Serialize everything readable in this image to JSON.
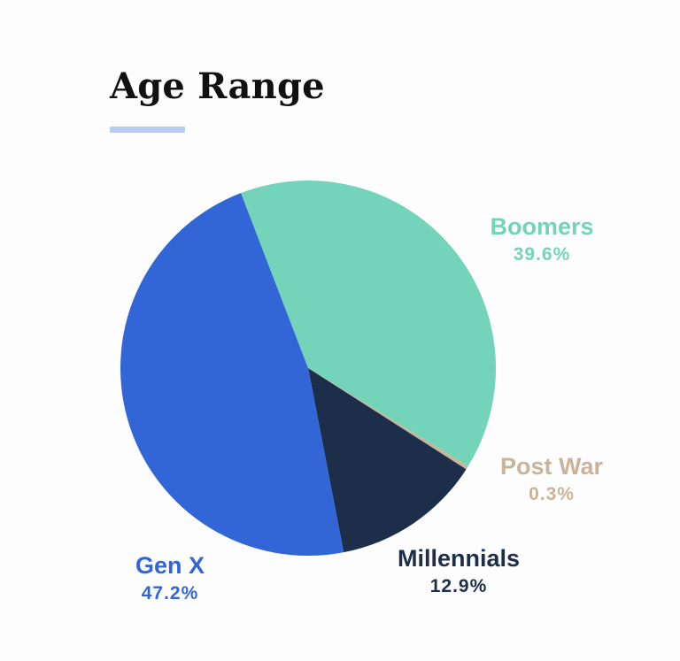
{
  "header": {
    "title": "Age Range"
  },
  "colors": {
    "title": "#111111",
    "underline": "#b9ccef"
  },
  "chart_data": {
    "type": "pie",
    "title": "Age Range",
    "slices": [
      {
        "label": "Boomers",
        "value": 39.6,
        "display": "39.6%",
        "color": "#73d4b9",
        "label_color": "#73d4b9"
      },
      {
        "label": "Post War",
        "value": 0.3,
        "display": "0.3%",
        "color": "#c9b49a",
        "label_color": "#c9b49a"
      },
      {
        "label": "Millennials",
        "value": 12.9,
        "display": "12.9%",
        "color": "#1d2e4a",
        "label_color": "#1d2e4a"
      },
      {
        "label": "Gen X",
        "value": 47.2,
        "display": "47.2%",
        "color": "#3266d6",
        "label_color": "#3266d6"
      }
    ],
    "legend": "none"
  }
}
